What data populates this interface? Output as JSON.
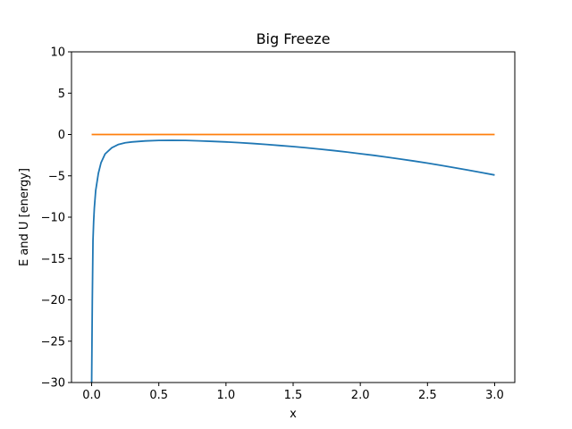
{
  "chart_data": {
    "type": "line",
    "title": "Big Freeze",
    "xlabel": "x",
    "ylabel": "E and U [energy]",
    "xlim": [
      -0.15,
      3.15
    ],
    "ylim": [
      -30,
      10
    ],
    "xticks": [
      0.0,
      0.5,
      1.0,
      1.5,
      2.0,
      2.5,
      3.0
    ],
    "xtick_labels": [
      "0.0",
      "0.5",
      "1.0",
      "1.5",
      "2.0",
      "2.5",
      "3.0"
    ],
    "yticks": [
      10,
      5,
      0,
      -5,
      -10,
      -15,
      -20,
      -25,
      -30
    ],
    "ytick_labels": [
      "10",
      "5",
      "0",
      "−5",
      "−10",
      "−15",
      "−20",
      "−25",
      "−30"
    ],
    "grid": false,
    "series": [
      {
        "color": "#1f77b4",
        "points": [
          [
            0.0,
            -30
          ],
          [
            0.005,
            -20
          ],
          [
            0.01,
            -12.8
          ],
          [
            0.015,
            -10.5
          ],
          [
            0.02,
            -8.9
          ],
          [
            0.03,
            -6.8
          ],
          [
            0.05,
            -4.7
          ],
          [
            0.07,
            -3.4
          ],
          [
            0.1,
            -2.35
          ],
          [
            0.15,
            -1.6
          ],
          [
            0.2,
            -1.2
          ],
          [
            0.25,
            -1.0
          ],
          [
            0.3,
            -0.9
          ],
          [
            0.4,
            -0.78
          ],
          [
            0.5,
            -0.72
          ],
          [
            0.6,
            -0.7
          ],
          [
            0.7,
            -0.72
          ],
          [
            0.8,
            -0.77
          ],
          [
            0.9,
            -0.83
          ],
          [
            1.0,
            -0.9
          ],
          [
            1.1,
            -0.99
          ],
          [
            1.2,
            -1.09
          ],
          [
            1.3,
            -1.2
          ],
          [
            1.4,
            -1.33
          ],
          [
            1.5,
            -1.46
          ],
          [
            1.6,
            -1.61
          ],
          [
            1.7,
            -1.77
          ],
          [
            1.8,
            -1.94
          ],
          [
            1.9,
            -2.12
          ],
          [
            2.0,
            -2.32
          ],
          [
            2.1,
            -2.52
          ],
          [
            2.2,
            -2.74
          ],
          [
            2.3,
            -2.97
          ],
          [
            2.4,
            -3.21
          ],
          [
            2.5,
            -3.46
          ],
          [
            2.6,
            -3.73
          ],
          [
            2.7,
            -4.01
          ],
          [
            2.8,
            -4.3
          ],
          [
            2.9,
            -4.6
          ],
          [
            3.0,
            -4.9
          ]
        ]
      },
      {
        "color": "#ff7f0e",
        "points": [
          [
            0.0,
            0.0
          ],
          [
            3.0,
            0.0
          ]
        ]
      }
    ]
  }
}
